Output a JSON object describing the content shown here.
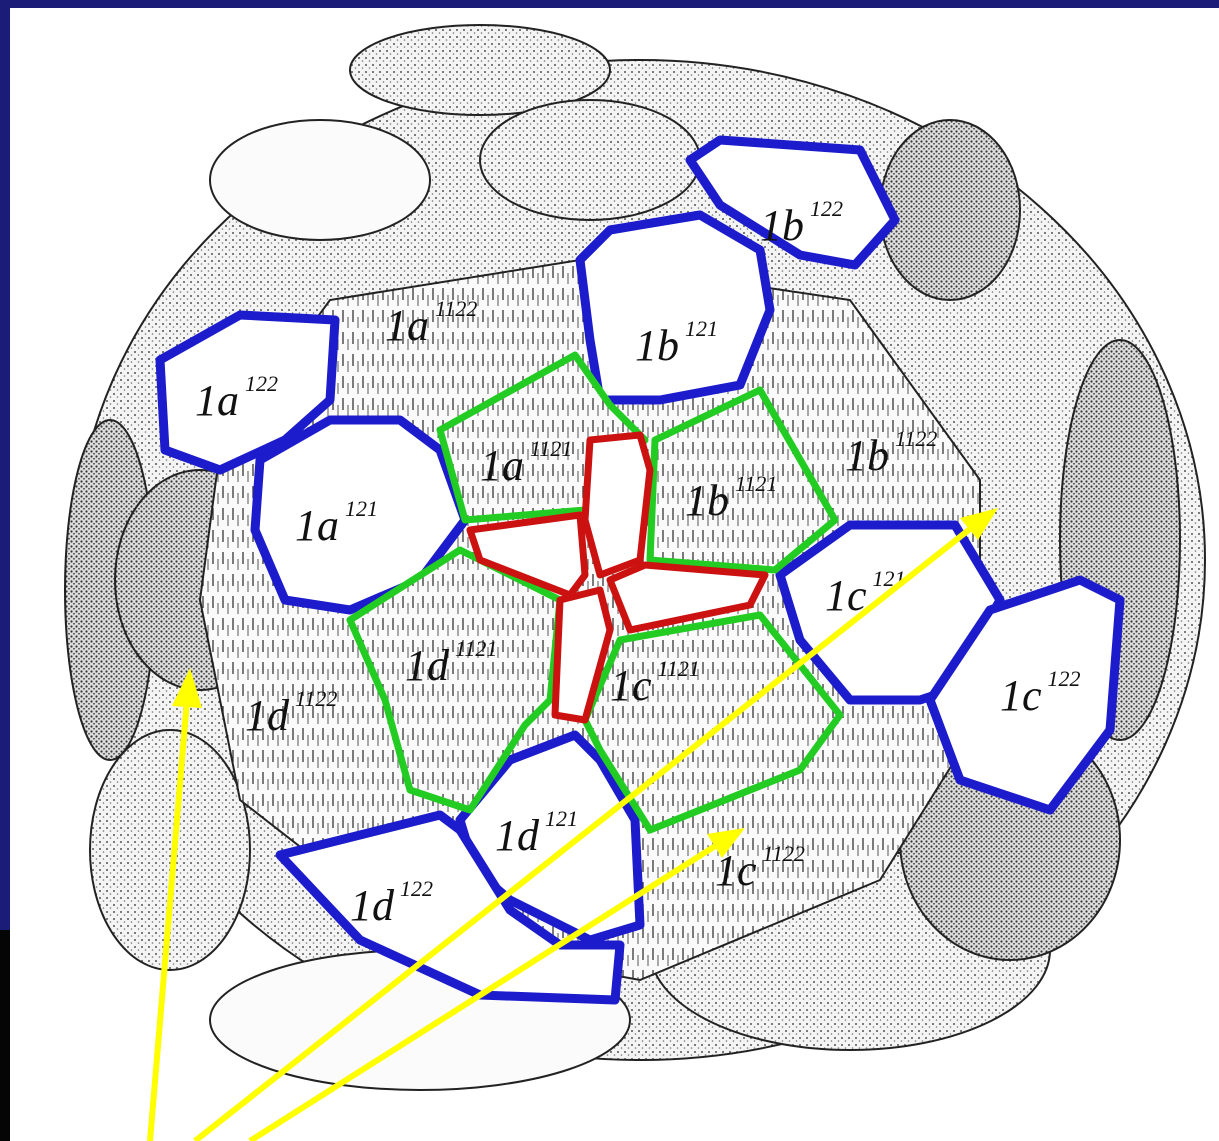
{
  "cells": [
    {
      "label": "1a",
      "index": "122"
    },
    {
      "label": "1a",
      "index": "121"
    },
    {
      "label": "1a",
      "index": "1122"
    },
    {
      "label": "1a",
      "index": "1121"
    },
    {
      "label": "1b",
      "index": "122"
    },
    {
      "label": "1b",
      "index": "121"
    },
    {
      "label": "1b",
      "index": "1122"
    },
    {
      "label": "1b",
      "index": "1121"
    },
    {
      "label": "1c",
      "index": "121"
    },
    {
      "label": "1c",
      "index": "122"
    },
    {
      "label": "1c",
      "index": "1121"
    },
    {
      "label": "1c",
      "index": "1122"
    },
    {
      "label": "1d",
      "index": "1121"
    },
    {
      "label": "1d",
      "index": "1122"
    },
    {
      "label": "1d",
      "index": "121"
    },
    {
      "label": "1d",
      "index": "122"
    }
  ]
}
